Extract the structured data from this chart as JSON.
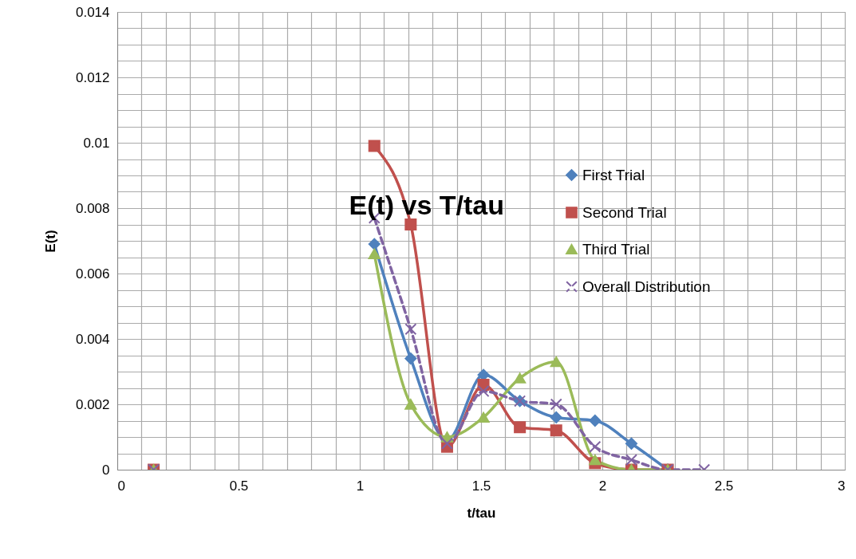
{
  "chart_data": {
    "type": "line",
    "title": "E(t) vs T/tau",
    "xlabel": "t/tau",
    "ylabel": "E(t)",
    "xlim": [
      0,
      3
    ],
    "ylim": [
      0,
      0.014
    ],
    "xticks": [
      0,
      {
        "value": 0.1,
        "label": null
      },
      {
        "value": 0.2,
        "label": null
      },
      {
        "value": 0.3,
        "label": null
      },
      {
        "value": 0.4,
        "label": null
      },
      0.5,
      {
        "value": 0.6,
        "label": null
      },
      {
        "value": 0.7,
        "label": null
      },
      {
        "value": 0.8,
        "label": null
      },
      {
        "value": 0.9,
        "label": null
      },
      1,
      {
        "value": 1.1,
        "label": null
      },
      {
        "value": 1.2,
        "label": null
      },
      {
        "value": 1.3,
        "label": null
      },
      {
        "value": 1.4,
        "label": null
      },
      1.5,
      {
        "value": 1.6,
        "label": null
      },
      {
        "value": 1.7,
        "label": null
      },
      {
        "value": 1.8,
        "label": null
      },
      {
        "value": 1.9,
        "label": null
      },
      2,
      {
        "value": 2.1,
        "label": null
      },
      {
        "value": 2.2,
        "label": null
      },
      {
        "value": 2.3,
        "label": null
      },
      {
        "value": 2.4,
        "label": null
      },
      2.5,
      {
        "value": 2.6,
        "label": null
      },
      {
        "value": 2.7,
        "label": null
      },
      {
        "value": 2.8,
        "label": null
      },
      {
        "value": 2.9,
        "label": null
      },
      3
    ],
    "yticks": [
      0,
      {
        "value": 0.0005,
        "label": null
      },
      {
        "value": 0.001,
        "label": null
      },
      {
        "value": 0.0015,
        "label": null
      },
      0.002,
      {
        "value": 0.0025,
        "label": null
      },
      {
        "value": 0.003,
        "label": null
      },
      {
        "value": 0.0035,
        "label": null
      },
      0.004,
      {
        "value": 0.0045,
        "label": null
      },
      {
        "value": 0.005,
        "label": null
      },
      {
        "value": 0.0055,
        "label": null
      },
      0.006,
      {
        "value": 0.0065,
        "label": null
      },
      {
        "value": 0.007,
        "label": null
      },
      {
        "value": 0.0075,
        "label": null
      },
      0.008,
      {
        "value": 0.0085,
        "label": null
      },
      {
        "value": 0.009,
        "label": null
      },
      {
        "value": 0.0095,
        "label": null
      },
      0.01,
      {
        "value": 0.0105,
        "label": null
      },
      {
        "value": 0.011,
        "label": null
      },
      {
        "value": 0.0115,
        "label": null
      },
      0.012,
      {
        "value": 0.0125,
        "label": null
      },
      {
        "value": 0.013,
        "label": null
      },
      {
        "value": 0.0135,
        "label": null
      },
      0.014
    ],
    "grid": true,
    "legend": "right",
    "series": [
      {
        "name": "First Trial",
        "color": "#4f81bd",
        "marker": "diamond",
        "line_style": "solid",
        "x": [
          1.06,
          1.21,
          1.36,
          1.51,
          1.66,
          1.81,
          1.97,
          2.12,
          2.27
        ],
        "values": [
          0.0069,
          0.0034,
          0.0009,
          0.0029,
          0.0021,
          0.0016,
          0.0015,
          0.0008,
          0
        ]
      },
      {
        "name": "Second Trial",
        "color": "#c0504d",
        "marker": "square",
        "line_style": "solid",
        "x": [
          0.15,
          0.6,
          1.06,
          1.21,
          1.36,
          1.51,
          1.66,
          1.81,
          1.97,
          2.12,
          2.27
        ],
        "values": [
          0,
          null,
          0.0099,
          0.0075,
          0.0007,
          0.0026,
          0.0013,
          0.0012,
          0.0002,
          0,
          0
        ]
      },
      {
        "name": "Third Trial",
        "color": "#9bbb59",
        "marker": "triangle",
        "line_style": "solid",
        "x": [
          0.15,
          0.6,
          1.06,
          1.21,
          1.36,
          1.51,
          1.66,
          1.81,
          1.97,
          2.12,
          2.27
        ],
        "values": [
          0,
          null,
          0.0066,
          0.002,
          0.001,
          0.0016,
          0.0028,
          0.0033,
          0.0003,
          0,
          0
        ]
      },
      {
        "name": "Overall Distribution",
        "color": "#8064a2",
        "marker": "cross",
        "line_style": "dashed",
        "x": [
          0.15,
          0.6,
          1.06,
          1.21,
          1.36,
          1.51,
          1.66,
          1.81,
          1.97,
          2.12,
          2.27,
          2.42
        ],
        "values": [
          0,
          null,
          0.0077,
          0.0043,
          0.0008,
          0.0024,
          0.0021,
          0.002,
          0.0007,
          0.0003,
          0,
          0
        ]
      }
    ]
  }
}
